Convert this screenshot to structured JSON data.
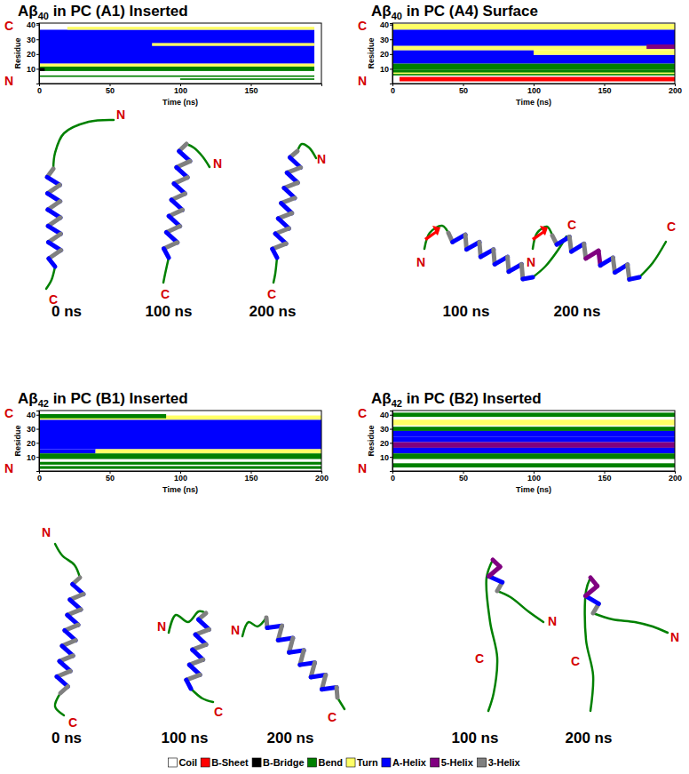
{
  "chart_data": [
    {
      "type": "heatmap",
      "title": "Aβ40 in PC (A1) Inserted",
      "x_label": "Time (ns)",
      "y_label": "Residue",
      "c_label": "C",
      "n_label": "N",
      "xlim": [
        0,
        200
      ],
      "xticks": [
        0,
        50,
        100,
        150
      ],
      "ylim": [
        0,
        41
      ],
      "yticks": [
        10,
        20,
        30,
        40
      ],
      "segments": [
        {
          "residues": [
            14,
            36
          ],
          "time": [
            0,
            195
          ],
          "structure": "A-Helix"
        },
        {
          "residues": [
            26,
            27
          ],
          "time": [
            80,
            195
          ],
          "structure": "Turn"
        },
        {
          "residues": [
            37,
            38
          ],
          "time": [
            20,
            195
          ],
          "structure": "Turn"
        },
        {
          "residues": [
            12,
            13
          ],
          "time": [
            0,
            195
          ],
          "structure": "Turn"
        },
        {
          "residues": [
            9,
            11
          ],
          "time": [
            0,
            195
          ],
          "structure": "Bend"
        },
        {
          "residues": [
            9,
            10
          ],
          "time": [
            0,
            4
          ],
          "structure": "B-Bridge"
        },
        {
          "residues": [
            5,
            5
          ],
          "time": [
            0,
            195
          ],
          "structure": "Bend"
        },
        {
          "residues": [
            3,
            3
          ],
          "time": [
            100,
            195
          ],
          "structure": "Bend"
        }
      ],
      "snapshots": [
        {
          "time_label": "0 ns"
        },
        {
          "time_label": "100 ns"
        },
        {
          "time_label": "200 ns"
        }
      ]
    },
    {
      "type": "heatmap",
      "title": "Aβ40 in PC (A4) Surface",
      "x_label": "Time (ns)",
      "y_label": "Residue",
      "c_label": "C",
      "n_label": "N",
      "xlim": [
        0,
        200
      ],
      "xticks": [
        0,
        50,
        100,
        150,
        200
      ],
      "ylim": [
        0,
        41
      ],
      "yticks": [
        10,
        20,
        30,
        40
      ],
      "segments": [
        {
          "residues": [
            37,
            40
          ],
          "time": [
            0,
            200
          ],
          "structure": "Turn"
        },
        {
          "residues": [
            26,
            36
          ],
          "time": [
            0,
            200
          ],
          "structure": "A-Helix"
        },
        {
          "residues": [
            23,
            25
          ],
          "time": [
            0,
            200
          ],
          "structure": "Turn"
        },
        {
          "residues": [
            14,
            22
          ],
          "time": [
            0,
            100
          ],
          "structure": "A-Helix"
        },
        {
          "residues": [
            14,
            19
          ],
          "time": [
            100,
            200
          ],
          "structure": "A-Helix"
        },
        {
          "residues": [
            20,
            22
          ],
          "time": [
            100,
            200
          ],
          "structure": "Turn"
        },
        {
          "residues": [
            24,
            26
          ],
          "time": [
            180,
            200
          ],
          "structure": "5-Helix"
        },
        {
          "residues": [
            10,
            13
          ],
          "time": [
            0,
            200
          ],
          "structure": "Bend"
        },
        {
          "residues": [
            6,
            9
          ],
          "time": [
            0,
            200
          ],
          "structure": "Bend"
        },
        {
          "residues": [
            7,
            7
          ],
          "time": [
            0,
            200
          ],
          "structure": "Turn"
        },
        {
          "residues": [
            2,
            4
          ],
          "time": [
            5,
            200
          ],
          "structure": "B-Sheet"
        }
      ],
      "snapshots": [
        {
          "time_label": "100 ns"
        },
        {
          "time_label": "200 ns"
        }
      ]
    },
    {
      "type": "heatmap",
      "title": "Aβ42 in PC (B1) Inserted",
      "x_label": "Time (ns)",
      "y_label": "Residue",
      "c_label": "C",
      "n_label": "N",
      "xlim": [
        0,
        200
      ],
      "xticks": [
        0,
        50,
        100,
        150,
        200
      ],
      "ylim": [
        0,
        43
      ],
      "yticks": [
        10,
        20,
        30,
        40
      ],
      "segments": [
        {
          "residues": [
            16,
            36
          ],
          "time": [
            0,
            200
          ],
          "structure": "A-Helix"
        },
        {
          "residues": [
            13,
            15
          ],
          "time": [
            0,
            40
          ],
          "structure": "A-Helix"
        },
        {
          "residues": [
            13,
            15
          ],
          "time": [
            40,
            200
          ],
          "structure": "Turn"
        },
        {
          "residues": [
            37,
            39
          ],
          "time": [
            0,
            200
          ],
          "structure": "Turn"
        },
        {
          "residues": [
            38,
            40
          ],
          "time": [
            0,
            90
          ],
          "structure": "Bend"
        },
        {
          "residues": [
            9,
            12
          ],
          "time": [
            0,
            200
          ],
          "structure": "Bend"
        },
        {
          "residues": [
            5,
            6
          ],
          "time": [
            0,
            200
          ],
          "structure": "Bend"
        },
        {
          "residues": [
            2,
            3
          ],
          "time": [
            0,
            200
          ],
          "structure": "Bend"
        }
      ],
      "snapshots": [
        {
          "time_label": "0 ns"
        },
        {
          "time_label": "100 ns"
        },
        {
          "time_label": "200 ns"
        }
      ]
    },
    {
      "type": "heatmap",
      "title": "Aβ42 in PC (B2) Inserted",
      "x_label": "Time (ns)",
      "y_label": "Residue",
      "c_label": "C",
      "n_label": "N",
      "xlim": [
        0,
        200
      ],
      "xticks": [
        0,
        50,
        100,
        150,
        200
      ],
      "ylim": [
        0,
        43
      ],
      "yticks": [
        10,
        20,
        30,
        40
      ],
      "segments": [
        {
          "residues": [
            39,
            41
          ],
          "time": [
            0,
            200
          ],
          "structure": "Bend"
        },
        {
          "residues": [
            33,
            36
          ],
          "time": [
            0,
            200
          ],
          "structure": "Turn"
        },
        {
          "residues": [
            29,
            31
          ],
          "time": [
            0,
            200
          ],
          "structure": "Bend"
        },
        {
          "residues": [
            25,
            28
          ],
          "time": [
            0,
            200
          ],
          "structure": "A-Helix"
        },
        {
          "residues": [
            21,
            24
          ],
          "time": [
            0,
            200
          ],
          "structure": "A-Helix"
        },
        {
          "residues": [
            17,
            20
          ],
          "time": [
            0,
            200
          ],
          "structure": "5-Helix"
        },
        {
          "residues": [
            13,
            16
          ],
          "time": [
            0,
            200
          ],
          "structure": "A-Helix"
        },
        {
          "residues": [
            9,
            12
          ],
          "time": [
            0,
            200
          ],
          "structure": "Bend"
        },
        {
          "residues": [
            3,
            5
          ],
          "time": [
            0,
            200
          ],
          "structure": "Bend"
        }
      ],
      "snapshots": [
        {
          "time_label": "100 ns"
        },
        {
          "time_label": "200 ns"
        }
      ]
    }
  ],
  "legend_items": [
    {
      "name": "Coil",
      "color": "#ffffff"
    },
    {
      "name": "B-Sheet",
      "color": "#ff0000"
    },
    {
      "name": "B-Bridge",
      "color": "#000000"
    },
    {
      "name": "Bend",
      "color": "#008000"
    },
    {
      "name": "Turn",
      "color": "#ffff66"
    },
    {
      "name": "A-Helix",
      "color": "#0000ff"
    },
    {
      "name": "5-Helix",
      "color": "#800080"
    },
    {
      "name": "3-Helix",
      "color": "#808080"
    }
  ]
}
